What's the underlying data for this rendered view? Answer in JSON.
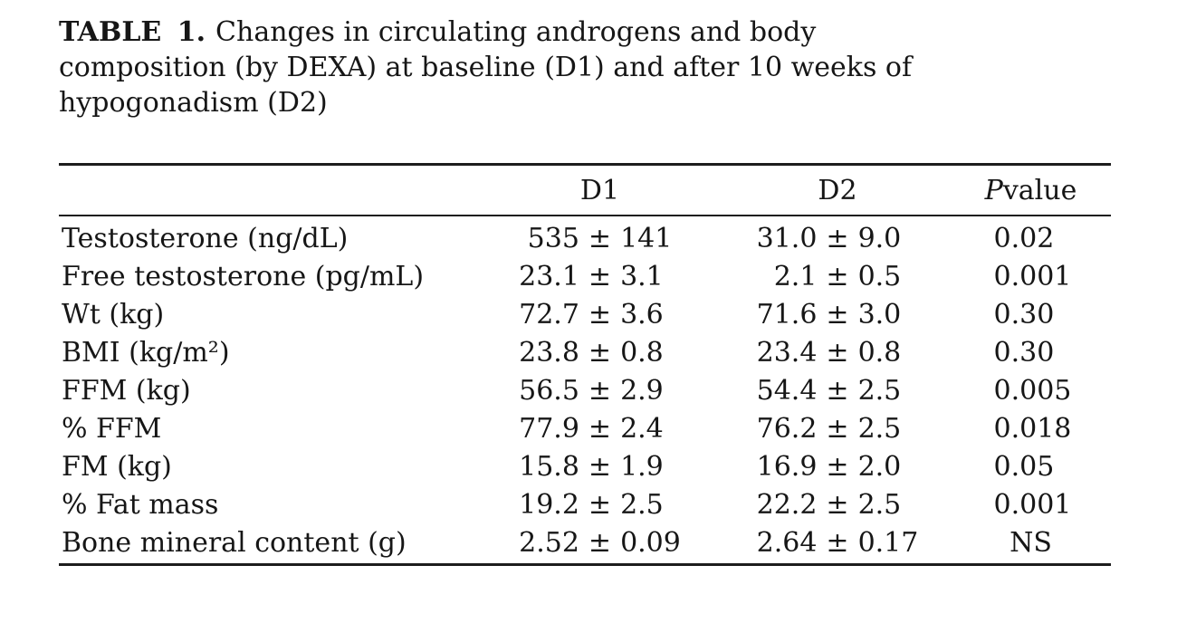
{
  "caption": {
    "label": "TABLE 1.",
    "line1": "Changes in circulating androgens and body",
    "line2": "composition (by DEXA) at baseline (D1) and after 10 weeks of",
    "line3": "hypogonadism (D2)"
  },
  "table": {
    "header": {
      "d1": "D1",
      "d2": "D2",
      "p_italic": "P",
      "p_rest": "value"
    },
    "plus_minus": "±",
    "rows": [
      {
        "label": "Testosterone (ng/dL)",
        "d1": [
          "535",
          "141"
        ],
        "d2": [
          "31.0",
          "9.0"
        ],
        "p": "0.02"
      },
      {
        "label": "Free testosterone (pg/mL)",
        "d1": [
          "23.1",
          "3.1"
        ],
        "d2": [
          "2.1",
          "0.5"
        ],
        "p": "0.001"
      },
      {
        "label": "Wt (kg)",
        "d1": [
          "72.7",
          "3.6"
        ],
        "d2": [
          "71.6",
          "3.0"
        ],
        "p": "0.30"
      },
      {
        "label": "BMI (kg/m²)",
        "d1": [
          "23.8",
          "0.8"
        ],
        "d2": [
          "23.4",
          "0.8"
        ],
        "p": "0.30"
      },
      {
        "label": "FFM (kg)",
        "d1": [
          "56.5",
          "2.9"
        ],
        "d2": [
          "54.4",
          "2.5"
        ],
        "p": "0.005"
      },
      {
        "label": "% FFM",
        "d1": [
          "77.9",
          "2.4"
        ],
        "d2": [
          "76.2",
          "2.5"
        ],
        "p": "0.018"
      },
      {
        "label": "FM (kg)",
        "d1": [
          "15.8",
          "1.9"
        ],
        "d2": [
          "16.9",
          "2.0"
        ],
        "p": "0.05"
      },
      {
        "label": "% Fat mass",
        "d1": [
          "19.2",
          "2.5"
        ],
        "d2": [
          "22.2",
          "2.5"
        ],
        "p": "0.001"
      },
      {
        "label": "Bone mineral content (g)",
        "d1": [
          "2.52",
          "0.09"
        ],
        "d2": [
          "2.64",
          "0.17"
        ],
        "p": "NS"
      }
    ]
  }
}
